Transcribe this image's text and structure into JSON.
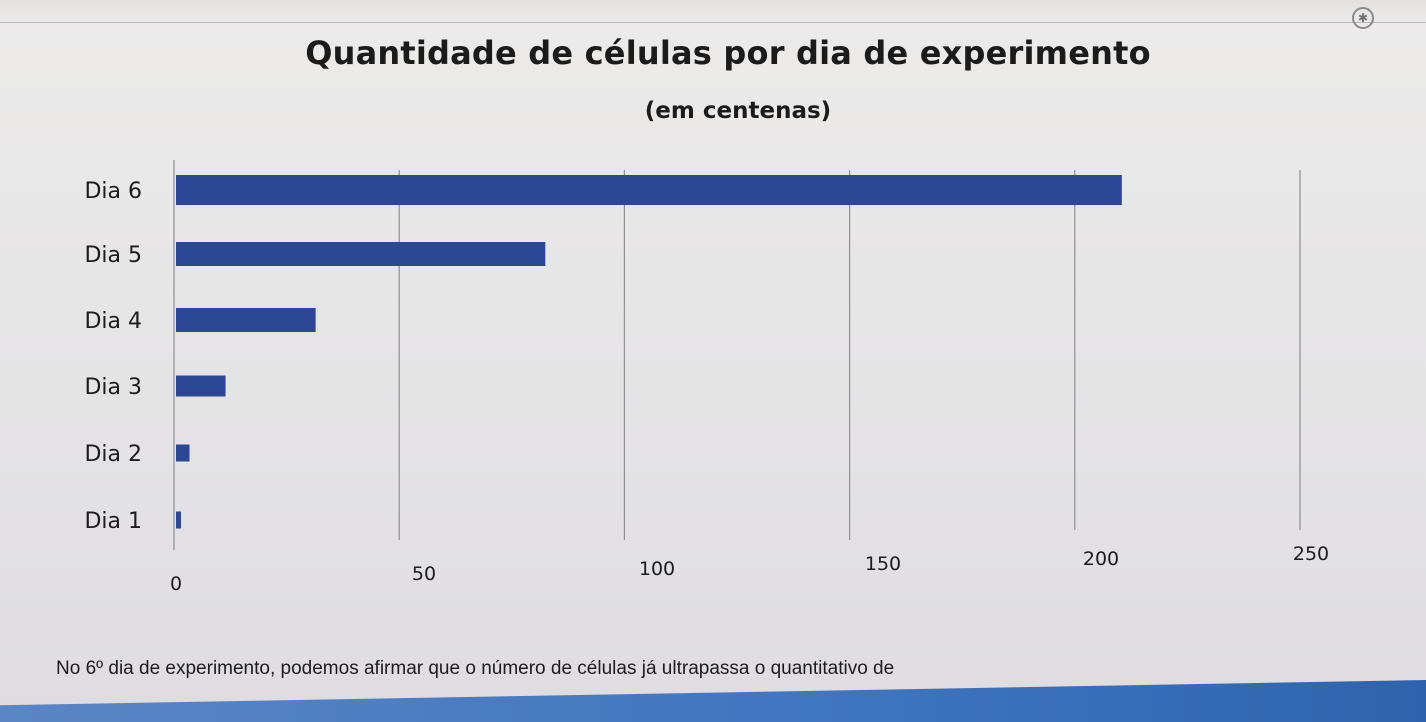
{
  "chart_data": {
    "type": "bar",
    "orientation": "horizontal",
    "title": "Quantidade de células por dia de experimento",
    "subtitle": "(em centenas)",
    "categories": [
      "Dia 1",
      "Dia 2",
      "Dia 3",
      "Dia 4",
      "Dia 5",
      "Dia 6"
    ],
    "values": [
      1,
      3,
      11,
      31,
      82,
      210
    ],
    "xlim": [
      0,
      250
    ],
    "xticks": [
      "0",
      "50",
      "100",
      "150",
      "200",
      "250"
    ],
    "grid": true,
    "bar_color": "#2c4796",
    "grid_color": "#8e8f93"
  },
  "question": {
    "prefix": "No ",
    "ordinal": "6º",
    "suffix": " dia de experimento, podemos afirmar que o número de células já ultrapassa o quantitativo de"
  },
  "icons": {
    "corner": "accessibility-icon"
  }
}
